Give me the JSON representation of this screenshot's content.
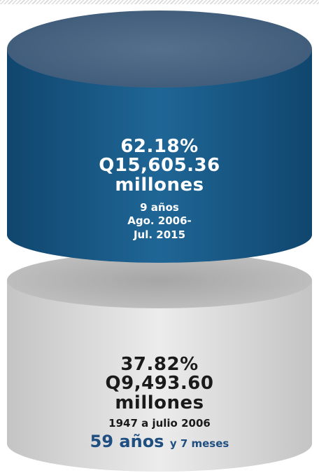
{
  "colors": {
    "top_cylinder": "#1f5e8a",
    "top_cylinder_cap": "#49627e",
    "bottom_cylinder": "#e0e0e0",
    "bottom_cylinder_cap": "#b5b5b5",
    "duration_text": "#1f4f80"
  },
  "top": {
    "percent": "62.18%",
    "amount": "Q15,605.36",
    "unit": "millones",
    "years": "9 años",
    "period_start": "Ago. 2006-",
    "period_end": "Jul. 2015"
  },
  "bottom": {
    "percent": "37.82%",
    "amount": "Q9,493.60",
    "unit": "millones",
    "period": "1947 a julio 2006",
    "duration_main": "59 años",
    "duration_rest": "y 7 meses"
  }
}
